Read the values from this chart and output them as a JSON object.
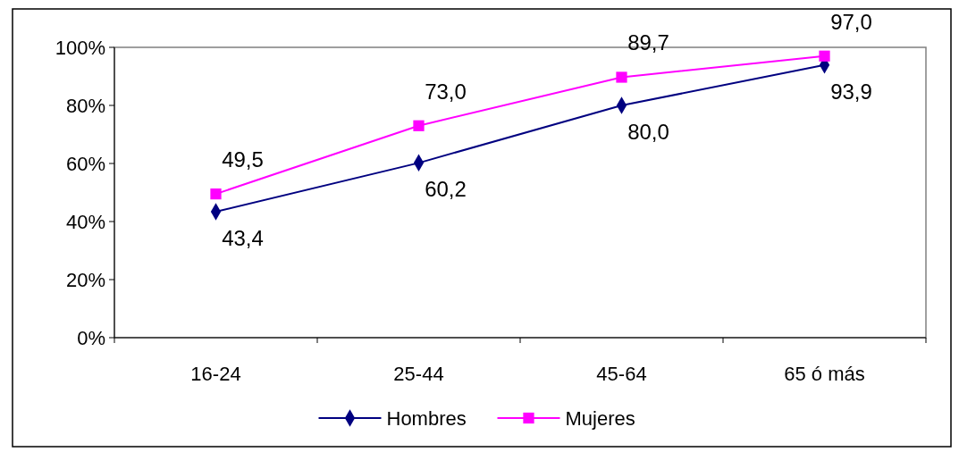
{
  "chart_data": {
    "type": "line",
    "categories": [
      "16-24",
      "25-44",
      "45-64",
      "65 ó más"
    ],
    "series": [
      {
        "name": "Hombres",
        "color": "#000080",
        "marker": "diamond",
        "values": [
          43.4,
          60.2,
          80.0,
          93.9
        ],
        "value_labels": [
          "43,4",
          "60,2",
          "80,0",
          "93,9"
        ]
      },
      {
        "name": "Mujeres",
        "color": "#ff00ff",
        "marker": "square",
        "values": [
          49.5,
          73.0,
          89.7,
          97.0
        ],
        "value_labels": [
          "49,5",
          "73,0",
          "89,7",
          "97,0"
        ]
      }
    ],
    "ylim": [
      0,
      100
    ],
    "yticks": [
      {
        "value": 0,
        "label": "0%"
      },
      {
        "value": 20,
        "label": "20%"
      },
      {
        "value": 40,
        "label": "40%"
      },
      {
        "value": 60,
        "label": "60%"
      },
      {
        "value": 80,
        "label": "80%"
      },
      {
        "value": 100,
        "label": "100%"
      }
    ],
    "grid": false,
    "legend": "bottom"
  }
}
